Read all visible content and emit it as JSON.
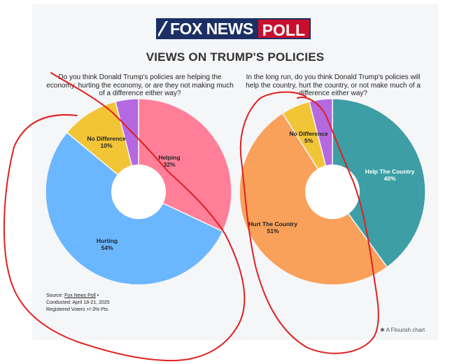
{
  "logo": {
    "part1": "FOX NEWS",
    "part2": "POLL"
  },
  "title": "VIEWS ON TRUMP'S POLICIES",
  "chart_data": [
    {
      "type": "pie",
      "question": "Do you think Donald Trump's policies are helping the economy, hurting the economy, or are they not making much of a difference either way?",
      "slices": [
        {
          "label": "Helping",
          "value": 32,
          "pct": "32%",
          "color": "#ff7f98"
        },
        {
          "label": "Hurting",
          "value": 54,
          "pct": "54%",
          "color": "#6bb7ff"
        },
        {
          "label": "No Difference",
          "value": 10,
          "pct": "10%",
          "color": "#f2c537"
        },
        {
          "label": "",
          "value": 4,
          "pct": "",
          "color": "#b469e0"
        }
      ]
    },
    {
      "type": "pie",
      "question": "In the long run, do you think Donald Trump's policies will help the country, hurt the country, or not make much of a difference either way?",
      "slices": [
        {
          "label": "Help The Country",
          "value": 40,
          "pct": "40%",
          "color": "#3d9ea6"
        },
        {
          "label": "Hurt The Country",
          "value": 51,
          "pct": "51%",
          "color": "#f9a05a"
        },
        {
          "label": "No Difference",
          "value": 5,
          "pct": "5%",
          "color": "#f2c537"
        },
        {
          "label": "",
          "value": 4,
          "pct": "",
          "color": "#b469e0"
        }
      ]
    }
  ],
  "source": {
    "prefix": "Source: ",
    "link": "Fox News Poll",
    "suffix": " •",
    "conducted": "Conducted: April 18-21, 2025",
    "voters": "Registered Voters +/-3% Pts."
  },
  "flourish": "✱ A Flourish chart"
}
